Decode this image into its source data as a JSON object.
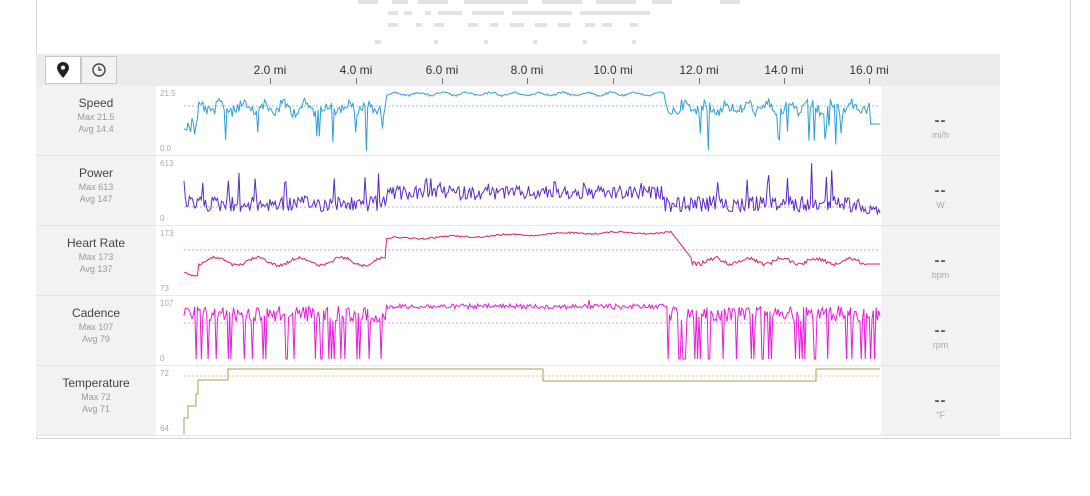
{
  "toolbar": {
    "location_icon": "map-pin-icon",
    "time_icon": "clock-icon",
    "distance_markers": [
      "2.0 mi",
      "4.0 mi",
      "6.0 mi",
      "8.0 mi",
      "10.0 mi",
      "12.0 mi",
      "14.0 mi",
      "16.0 mi"
    ]
  },
  "metrics": [
    {
      "name": "Speed",
      "max": "Max 21.5",
      "avg": "Avg 14.4",
      "ymax": "21.5",
      "ymin": "0.0",
      "value": "--",
      "unit": "mi/h",
      "color": "#2f9fd8",
      "avg_color": "#8ec9ea",
      "shape": "speed"
    },
    {
      "name": "Power",
      "max": "Max 613",
      "avg": "Avg 147",
      "ymax": "613",
      "ymin": "0",
      "value": "--",
      "unit": "W",
      "color": "#5a2bc8",
      "avg_color": "#b9a5e6",
      "shape": "power"
    },
    {
      "name": "Heart Rate",
      "max": "Max 173",
      "avg": "Avg 137",
      "ymax": "173",
      "ymin": "73",
      "value": "--",
      "unit": "bpm",
      "color": "#d8295a",
      "avg_color": "#ee9ab2",
      "shape": "hr"
    },
    {
      "name": "Cadence",
      "max": "Max 107",
      "avg": "Avg 79",
      "ymax": "107",
      "ymin": "0",
      "value": "--",
      "unit": "rpm",
      "color": "#e81ddb",
      "avg_color": "#f39cee",
      "shape": "cadence"
    },
    {
      "name": "Temperature",
      "max": "Max 72",
      "avg": "Avg 71",
      "ymax": "72",
      "ymin": "64",
      "value": "--",
      "unit": "°F",
      "color": "#b39a55",
      "avg_color": "#d9c88f",
      "shape": "temp"
    }
  ]
}
